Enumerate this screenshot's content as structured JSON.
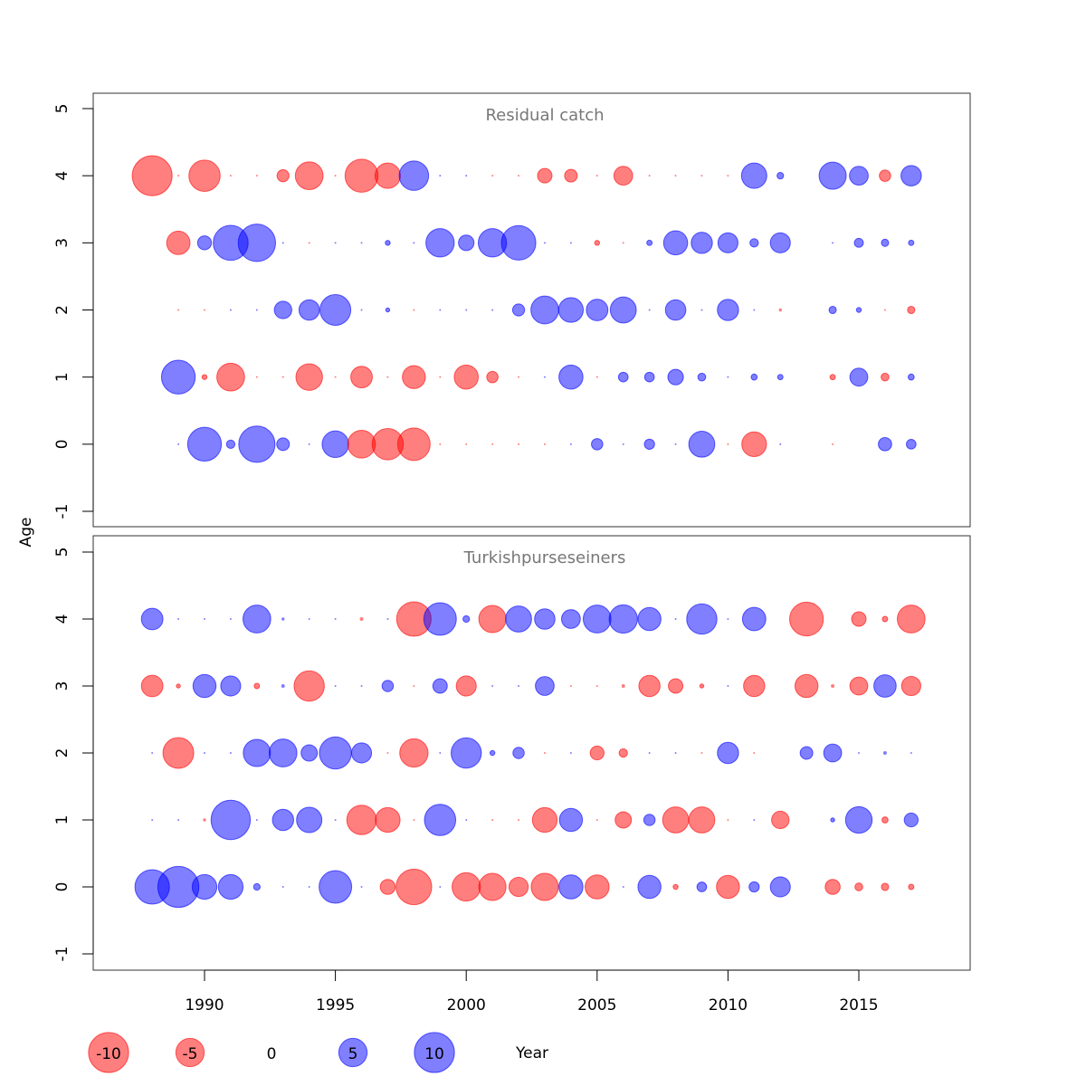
{
  "chart_data": {
    "type": "scatter",
    "subtype": "bubble",
    "xlabel": "Year",
    "ylabel": "Age",
    "xlim": [
      1986,
      2019
    ],
    "ylim": [
      -1.2,
      5.2
    ],
    "x_ticks": [
      1990,
      1995,
      2000,
      2005,
      2010,
      2015
    ],
    "y_ticks": [
      -1,
      0,
      1,
      2,
      3,
      4,
      5
    ],
    "grid": false,
    "colors": {
      "negative": "#ff0000",
      "positive": "#0000ff"
    },
    "legend": {
      "placement": "bottom",
      "values": [
        -10,
        -5,
        0,
        5,
        10
      ],
      "labels": [
        "-10",
        "-5",
        "0",
        "5",
        "10"
      ]
    },
    "years": [
      1988,
      1989,
      1990,
      1991,
      1992,
      1993,
      1994,
      1995,
      1996,
      1997,
      1998,
      1999,
      2000,
      2001,
      2002,
      2003,
      2004,
      2005,
      2006,
      2007,
      2008,
      2009,
      2010,
      2011,
      2012,
      2013,
      2014,
      2015,
      2016,
      2017
    ],
    "panels": [
      {
        "title": "Residual catch",
        "ages": [
          0,
          1,
          2,
          3,
          4
        ],
        "residuals": {
          "4": [
            -9.9,
            -0.02,
            -6.1,
            -0.02,
            -0.02,
            -0.9,
            -4.8,
            -0.02,
            -6.8,
            -4,
            5.4,
            0.02,
            0.02,
            -0.02,
            -0.02,
            -1.3,
            -1,
            -0.02,
            -2.2,
            -0.02,
            -0.02,
            -0.02,
            -0.02,
            4,
            0.27,
            null,
            4.6,
            2.2,
            -0.8,
            2.6
          ],
          "3": [
            null,
            -3.4,
            1.2,
            7.6,
            8.7,
            0.02,
            -0.02,
            0.02,
            0.02,
            0.15,
            0.02,
            5,
            1.5,
            5,
            7.4,
            0.02,
            0.02,
            -0.15,
            -0.02,
            0.18,
            3.6,
            2.8,
            2.5,
            0.44,
            2.5,
            null,
            0.02,
            0.5,
            0.33,
            0.18
          ],
          "2": [
            null,
            -0.02,
            -0.02,
            0.02,
            0.02,
            1.9,
            2.6,
            5.9,
            0.02,
            0.1,
            -0.02,
            0.02,
            0.02,
            0.02,
            0.9,
            4.8,
            3.8,
            2.9,
            4.2,
            0.02,
            2.6,
            0.02,
            2.8,
            0.02,
            -0.06,
            null,
            0.33,
            0.15,
            -0.02,
            -0.33
          ],
          "1": [
            null,
            7.1,
            -0.15,
            -4.8,
            -0.02,
            -0.02,
            -4.4,
            -0.02,
            -2.9,
            -0.02,
            -3.3,
            -0.02,
            -3.6,
            -0.8,
            -0.02,
            0.02,
            3.6,
            -0.02,
            0.58,
            0.58,
            1.5,
            0.38,
            0.02,
            0.23,
            0.18,
            null,
            -0.18,
            2.0,
            -0.38,
            0.23
          ],
          "0": [
            null,
            0.02,
            7.1,
            0.44,
            8.2,
            1,
            0.02,
            4.4,
            -4.8,
            -6.1,
            -6.6,
            -0.02,
            -0.02,
            -0.02,
            -0.02,
            -0.02,
            0.02,
            0.8,
            0.02,
            0.65,
            0.02,
            4.2,
            -0.02,
            -3.8,
            0.02,
            null,
            -0.02,
            null,
            1.1,
            0.58
          ]
        }
      },
      {
        "title": "Turkishpurseseiners",
        "ages": [
          0,
          1,
          2,
          3,
          4
        ],
        "residuals": {
          "4": [
            2.9,
            0.02,
            0.02,
            0.02,
            4.8,
            0.06,
            0.02,
            0.02,
            -0.08,
            0.02,
            -7.4,
            6.6,
            0.27,
            -4.6,
            4.2,
            2.6,
            2.2,
            4.8,
            5,
            3.3,
            0.02,
            5.7,
            0.02,
            3.4,
            null,
            -7.1,
            null,
            -1.3,
            -0.18,
            -4.8
          ],
          "3": [
            -2.9,
            -0.1,
            3.3,
            2.5,
            -0.18,
            0.08,
            -5.7,
            0.02,
            0.02,
            0.8,
            -0.02,
            1.3,
            -2.5,
            0.02,
            0.02,
            2.2,
            -0.02,
            -0.02,
            -0.08,
            -2.8,
            -1.3,
            -0.1,
            0.02,
            -2.8,
            null,
            -3.3,
            -0.08,
            -2,
            3.1,
            -2.3
          ],
          "2": [
            0.02,
            -5.9,
            0.02,
            0.02,
            4.6,
            4.8,
            1.65,
            6.4,
            2.5,
            -0.02,
            -5,
            0.02,
            5.7,
            0.15,
            0.8,
            -0.02,
            0.02,
            -1.2,
            -0.44,
            0.02,
            0.02,
            -0.02,
            2.8,
            -0.02,
            null,
            1,
            2,
            0.02,
            0.08,
            0.02
          ],
          "1": [
            0.02,
            0.02,
            -0.06,
            9.6,
            0.02,
            2.8,
            4,
            0.02,
            -5.4,
            -3.8,
            -0.02,
            6.1,
            0.02,
            -0.02,
            -0.02,
            -3.8,
            3.3,
            -0.02,
            -1.65,
            0.8,
            -4.2,
            -4.2,
            -0.02,
            0.02,
            -1.9,
            null,
            0.1,
            4.4,
            -0.23,
            1.2
          ],
          "0": [
            7.4,
            10.5,
            3.8,
            3.8,
            0.27,
            0.02,
            0.02,
            6.6,
            0.02,
            -1.4,
            -7.9,
            0.02,
            -5,
            -4.6,
            -2.3,
            -4.6,
            3.6,
            -3.6,
            0.02,
            3.3,
            -0.15,
            0.58,
            -3.3,
            0.65,
            2.5,
            null,
            -1.4,
            -0.38,
            -0.33,
            -0.18
          ]
        }
      }
    ]
  }
}
